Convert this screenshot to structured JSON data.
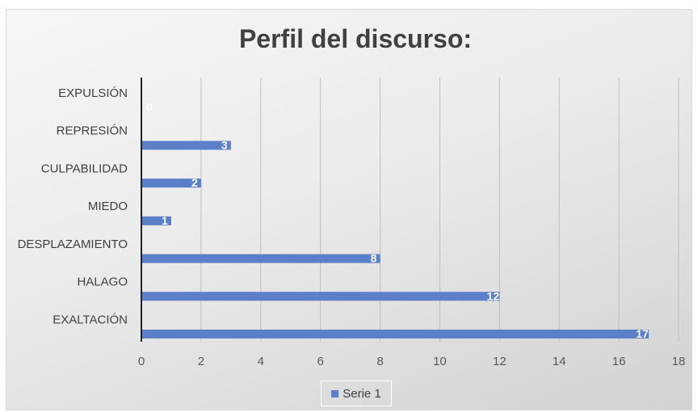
{
  "chart_data": {
    "type": "bar",
    "orientation": "horizontal",
    "title": "Perfil del discurso:",
    "categories": [
      "EXPULSIÓN",
      "REPRESIÓN",
      "CULPABILIDAD",
      "MIEDO",
      "DESPLAZAMIENTO",
      "HALAGO",
      "EXALTACIÓN"
    ],
    "series": [
      {
        "name": "Serie 1",
        "values": [
          0,
          3,
          2,
          1,
          8,
          12,
          17
        ]
      }
    ],
    "xlim": [
      0,
      18
    ],
    "xticks": [
      "0",
      "2",
      "4",
      "6",
      "8",
      "10",
      "12",
      "14",
      "16",
      "18"
    ],
    "grid": "vertical",
    "legend": "bottom",
    "colors": {
      "bar": "#5b7fc9",
      "label": "#ffffff",
      "grid": "#bfbfbf"
    }
  }
}
